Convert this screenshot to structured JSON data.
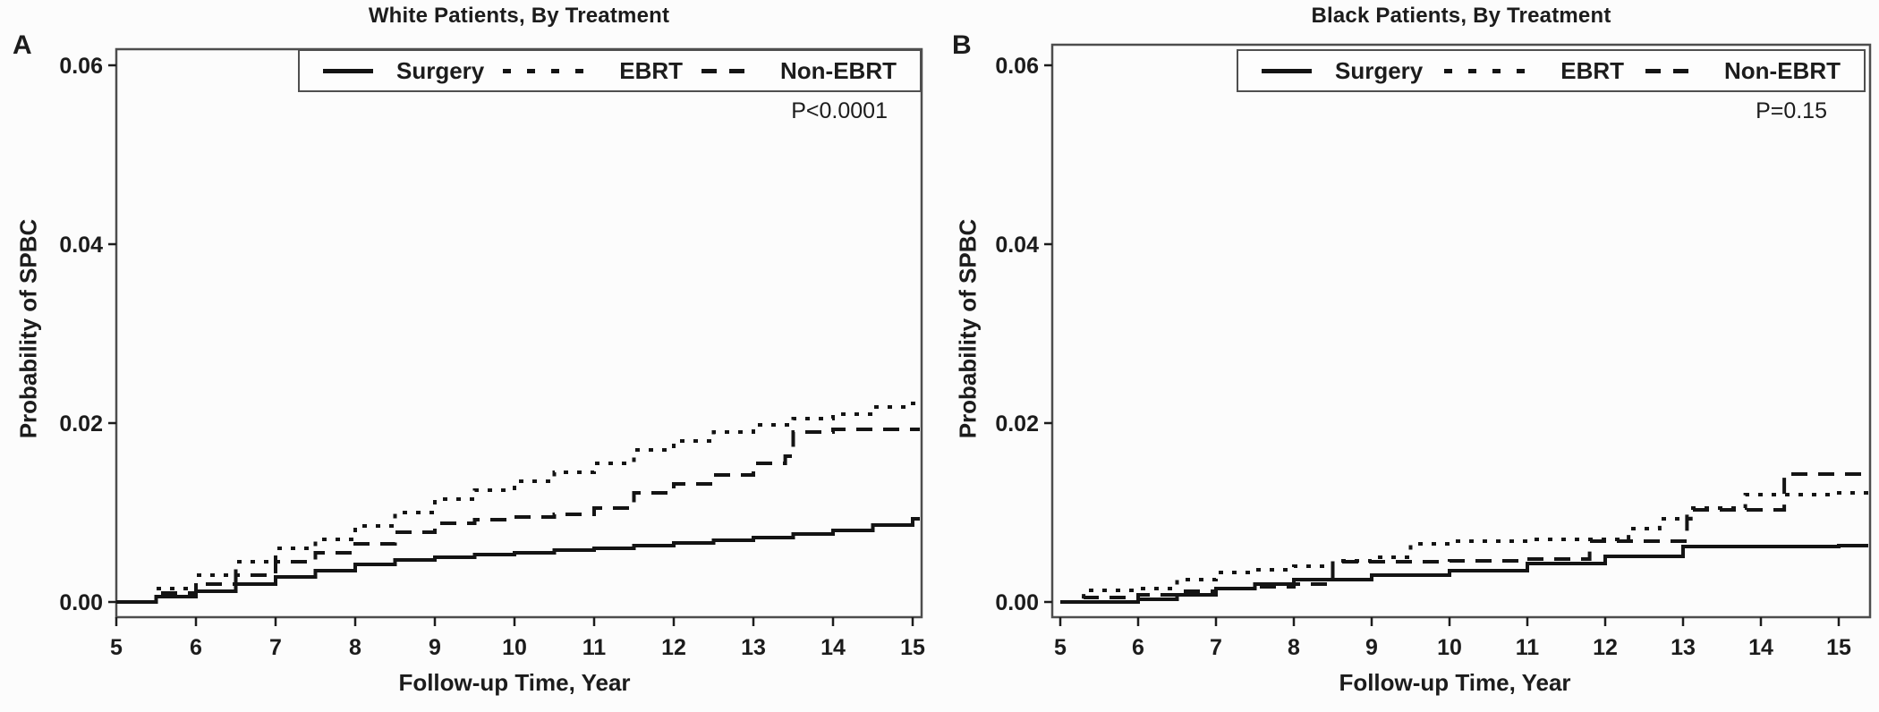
{
  "figure_type": "kaplan-meier-cumulative-incidence",
  "chart_data": [
    {
      "type": "line",
      "panel_label": "A",
      "title": "White Patients, By Treatment",
      "xlabel": "Follow-up Time, Year",
      "ylabel": "Probability of SPBC",
      "annotation": "P<0.0001",
      "xlim": [
        5,
        15
      ],
      "ylim": [
        0,
        0.06
      ],
      "xticks": [
        5,
        6,
        7,
        8,
        9,
        10,
        11,
        12,
        13,
        14,
        15
      ],
      "ytick_values": [
        0.0,
        0.02,
        0.04,
        0.06
      ],
      "ytick_labels": [
        "0.00",
        "0.02",
        "0.04",
        "0.06"
      ],
      "grid": false,
      "legend_position": "top-inside-box",
      "line_color": "#141414",
      "series": [
        {
          "name": "Surgery",
          "style": "solid",
          "x": [
            5,
            5.5,
            6,
            6.5,
            7,
            7.5,
            8,
            8.5,
            9,
            9.5,
            10,
            10.5,
            11,
            11.5,
            12,
            12.5,
            13,
            13.5,
            14,
            14.5,
            15
          ],
          "y": [
            0.0,
            0.0006,
            0.0012,
            0.002,
            0.0028,
            0.0035,
            0.0042,
            0.0047,
            0.005,
            0.0053,
            0.0055,
            0.0058,
            0.006,
            0.0063,
            0.0066,
            0.0069,
            0.0072,
            0.0076,
            0.008,
            0.0086,
            0.0093
          ]
        },
        {
          "name": "EBRT",
          "style": "dotted",
          "x": [
            5,
            5.5,
            6,
            6.5,
            7,
            7.5,
            8,
            8.5,
            9,
            9.5,
            10,
            10.5,
            11,
            11.5,
            12,
            12.5,
            13,
            13.5,
            14,
            14.5,
            15
          ],
          "y": [
            0.0,
            0.0015,
            0.003,
            0.0045,
            0.006,
            0.007,
            0.0085,
            0.01,
            0.0115,
            0.0125,
            0.0135,
            0.0145,
            0.0155,
            0.017,
            0.018,
            0.019,
            0.0198,
            0.0205,
            0.021,
            0.0218,
            0.0222
          ]
        },
        {
          "name": "Non-EBRT",
          "style": "dashed",
          "x": [
            5,
            5.5,
            6,
            6.5,
            7,
            7.5,
            8,
            8.5,
            9,
            9.5,
            10,
            10.5,
            11,
            11.5,
            12,
            12.5,
            13,
            13.4,
            13.5,
            14,
            15
          ],
          "y": [
            0.0,
            0.001,
            0.002,
            0.003,
            0.0045,
            0.0055,
            0.0065,
            0.0078,
            0.0088,
            0.0092,
            0.0095,
            0.0098,
            0.0105,
            0.0122,
            0.0132,
            0.0142,
            0.0155,
            0.0163,
            0.019,
            0.0193,
            0.0193
          ]
        }
      ]
    },
    {
      "type": "line",
      "panel_label": "B",
      "title": "Black Patients, By Treatment",
      "xlabel": "Follow-up Time, Year",
      "ylabel": "Probability of SPBC",
      "annotation": "P=0.15",
      "xlim": [
        5,
        15
      ],
      "ylim": [
        0,
        0.06
      ],
      "xticks": [
        5,
        6,
        7,
        8,
        9,
        10,
        11,
        12,
        13,
        14,
        15
      ],
      "ytick_values": [
        0.0,
        0.02,
        0.04,
        0.06
      ],
      "ytick_labels": [
        "0.00",
        "0.02",
        "0.04",
        "0.06"
      ],
      "grid": false,
      "legend_position": "top-inside-box",
      "line_color": "#141414",
      "series": [
        {
          "name": "Surgery",
          "style": "solid",
          "x": [
            5,
            6,
            6.5,
            7,
            7.5,
            8,
            9,
            10,
            11,
            12,
            13,
            15
          ],
          "y": [
            0.0,
            0.0003,
            0.0008,
            0.0015,
            0.002,
            0.0025,
            0.003,
            0.0035,
            0.0043,
            0.0051,
            0.0062,
            0.0063
          ]
        },
        {
          "name": "EBRT",
          "style": "dotted",
          "x": [
            5,
            5.3,
            6,
            6.5,
            7,
            7.5,
            8,
            8.5,
            9,
            9.5,
            10,
            11,
            12,
            12.3,
            12.7,
            13.1,
            13.8,
            15
          ],
          "y": [
            0.0,
            0.0013,
            0.0015,
            0.0025,
            0.0033,
            0.0036,
            0.004,
            0.0046,
            0.005,
            0.0065,
            0.0068,
            0.007,
            0.007,
            0.0082,
            0.0093,
            0.0105,
            0.012,
            0.0122
          ]
        },
        {
          "name": "Non-EBRT",
          "style": "dashed",
          "x": [
            5,
            5.3,
            6,
            6.5,
            7,
            7.5,
            8,
            8.5,
            9,
            10,
            11,
            11.8,
            13.05,
            14.3,
            15
          ],
          "y": [
            0.0,
            0.0005,
            0.0008,
            0.0012,
            0.0015,
            0.0017,
            0.002,
            0.0045,
            0.0045,
            0.0046,
            0.0048,
            0.0068,
            0.0103,
            0.0143,
            0.0143
          ]
        }
      ]
    }
  ]
}
